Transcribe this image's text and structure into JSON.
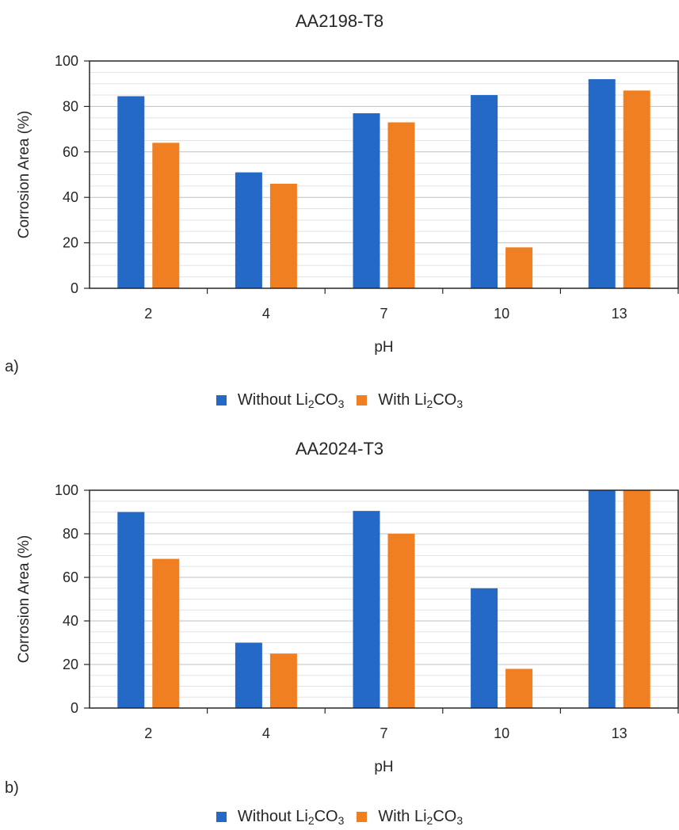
{
  "chart_data": [
    {
      "panel": "a)",
      "type": "bar",
      "title": "AA2198-T8",
      "xlabel": "pH",
      "ylabel": "Corrosion Area (%)",
      "ylim": [
        0,
        100
      ],
      "yticks": [
        "0",
        "20",
        "40",
        "60",
        "80",
        "100"
      ],
      "categories": [
        "2",
        "4",
        "7",
        "10",
        "13"
      ],
      "series": [
        {
          "name_main": "Without Li",
          "name_sub1": "2",
          "name_mid": "CO",
          "name_sub2": "3",
          "color": "#2469c6",
          "values": [
            84.5,
            51,
            77,
            85,
            92
          ]
        },
        {
          "name_main": "With Li",
          "name_sub1": "2",
          "name_mid": "CO",
          "name_sub2": "3",
          "color": "#f07f22",
          "values": [
            64,
            46,
            73,
            18,
            87
          ]
        }
      ],
      "grid": "horizontal",
      "legend_position": "bottom"
    },
    {
      "panel": "b)",
      "type": "bar",
      "title": "AA2024-T3",
      "xlabel": "pH",
      "ylabel": "Corrosion Area (%)",
      "ylim": [
        0,
        100
      ],
      "yticks": [
        "0",
        "20",
        "40",
        "60",
        "80",
        "100"
      ],
      "categories": [
        "2",
        "4",
        "7",
        "10",
        "13"
      ],
      "series": [
        {
          "name_main": "Without Li",
          "name_sub1": "2",
          "name_mid": "CO",
          "name_sub2": "3",
          "color": "#2469c6",
          "values": [
            90,
            30,
            90.5,
            55,
            100
          ]
        },
        {
          "name_main": "With Li",
          "name_sub1": "2",
          "name_mid": "CO",
          "name_sub2": "3",
          "color": "#f07f22",
          "values": [
            68.5,
            25,
            80,
            18,
            100
          ]
        }
      ],
      "grid": "horizontal",
      "legend_position": "bottom"
    }
  ]
}
